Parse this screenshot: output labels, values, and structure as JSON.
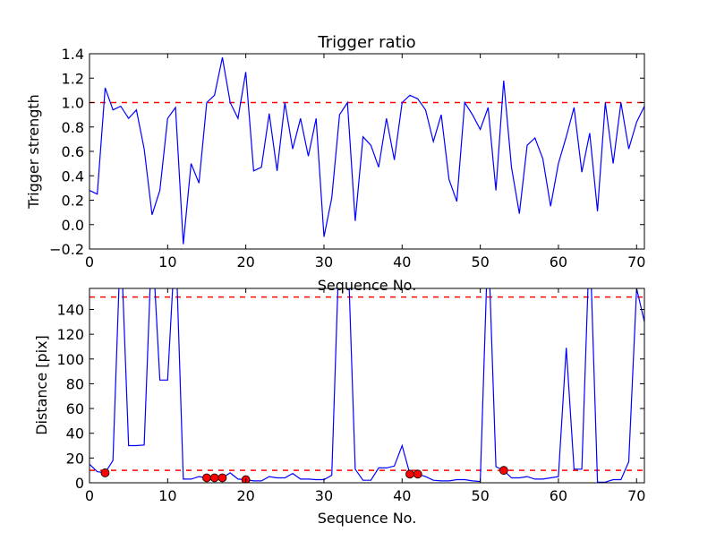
{
  "chart_data": [
    {
      "type": "line",
      "title": "Trigger ratio",
      "xlabel": "Sequence No.",
      "ylabel": "Trigger strength",
      "xlim": [
        0,
        71
      ],
      "ylim": [
        -0.2,
        1.4
      ],
      "xticks": [
        0,
        10,
        20,
        30,
        40,
        50,
        60,
        70
      ],
      "yticks": [
        -0.2,
        0.0,
        0.2,
        0.4,
        0.6,
        0.8,
        1.0,
        1.2,
        1.4
      ],
      "ytick_labels": [
        "−0.2",
        "0.0",
        "0.2",
        "0.4",
        "0.6",
        "0.8",
        "1.0",
        "1.2",
        "1.4"
      ],
      "hlines": [
        {
          "y": 1.0,
          "color": "#ff0000",
          "style": "dashed"
        }
      ],
      "series": [
        {
          "name": "trigger strength",
          "color": "#0000ff",
          "x": [
            0,
            1,
            2,
            3,
            4,
            5,
            6,
            7,
            8,
            9,
            10,
            11,
            12,
            13,
            14,
            15,
            16,
            17,
            18,
            19,
            20,
            21,
            22,
            23,
            24,
            25,
            26,
            27,
            28,
            29,
            30,
            31,
            32,
            33,
            34,
            35,
            36,
            37,
            38,
            39,
            40,
            41,
            42,
            43,
            44,
            45,
            46,
            47,
            48,
            49,
            50,
            51,
            52,
            53,
            54,
            55,
            56,
            57,
            58,
            59,
            60,
            61,
            62,
            63,
            64,
            65,
            66,
            67,
            68,
            69,
            70,
            71
          ],
          "y": [
            0.28,
            0.25,
            1.12,
            0.94,
            0.97,
            0.87,
            0.94,
            0.62,
            0.08,
            0.28,
            0.87,
            0.96,
            -0.16,
            0.5,
            0.34,
            1.0,
            1.06,
            1.37,
            1.0,
            0.87,
            1.25,
            0.44,
            0.47,
            0.91,
            0.44,
            1.0,
            0.62,
            0.87,
            0.56,
            0.87,
            -0.1,
            0.22,
            0.9,
            1.0,
            0.03,
            0.72,
            0.65,
            0.47,
            0.87,
            0.53,
            1.0,
            1.06,
            1.03,
            0.94,
            0.68,
            0.9,
            0.37,
            0.19,
            1.0,
            0.9,
            0.78,
            0.96,
            0.28,
            1.18,
            0.47,
            0.09,
            0.65,
            0.71,
            0.54,
            0.15,
            0.5,
            0.72,
            0.96,
            0.43,
            0.75,
            0.11,
            1.0,
            0.5,
            1.0,
            0.62,
            0.84,
            0.97
          ]
        }
      ]
    },
    {
      "type": "line",
      "title": "",
      "xlabel": "Sequence No.",
      "ylabel": "Distance [pix]",
      "xlim": [
        0,
        71
      ],
      "ylim": [
        0,
        157
      ],
      "xticks": [
        0,
        10,
        20,
        30,
        40,
        50,
        60,
        70
      ],
      "yticks": [
        0,
        20,
        40,
        60,
        80,
        100,
        120,
        140
      ],
      "ytick_labels": [
        "0",
        "20",
        "40",
        "60",
        "80",
        "100",
        "120",
        "140"
      ],
      "hlines": [
        {
          "y": 150,
          "color": "#ff0000",
          "style": "dashed"
        },
        {
          "y": 10,
          "color": "#ff0000",
          "style": "dashed"
        }
      ],
      "series": [
        {
          "name": "distance",
          "color": "#0000ff",
          "x": [
            0,
            1,
            2,
            3,
            4,
            5,
            6,
            7,
            8,
            9,
            10,
            11,
            12,
            13,
            14,
            15,
            16,
            17,
            18,
            19,
            20,
            21,
            22,
            23,
            24,
            25,
            26,
            27,
            28,
            29,
            30,
            31,
            32,
            33,
            34,
            35,
            36,
            37,
            38,
            39,
            40,
            41,
            42,
            43,
            44,
            45,
            46,
            47,
            48,
            49,
            50,
            51,
            52,
            53,
            54,
            55,
            56,
            57,
            58,
            59,
            60,
            61,
            62,
            63,
            64,
            65,
            66,
            67,
            68,
            69,
            70,
            71
          ],
          "y": [
            15,
            9,
            8,
            18,
            200,
            30,
            30,
            30.5,
            200,
            83,
            83,
            200,
            3,
            3,
            5,
            4,
            4,
            4,
            8,
            3,
            2.5,
            1.5,
            1.5,
            5,
            4,
            4,
            7.5,
            3,
            3,
            2.5,
            2.5,
            6,
            200,
            200,
            11,
            2,
            2,
            12,
            12,
            13.5,
            30,
            7,
            7,
            5,
            2,
            1.5,
            1.5,
            2.5,
            2.5,
            1.5,
            1,
            200,
            13,
            10,
            4,
            4,
            5,
            3,
            3,
            4,
            5,
            109,
            11,
            11,
            200,
            0.5,
            0.5,
            2.5,
            2.5,
            17,
            157,
            130
          ]
        },
        {
          "name": "selected points",
          "color": "#ff0000",
          "marker": "circle",
          "x": [
            2,
            15,
            16,
            17,
            20,
            41,
            42,
            53
          ],
          "y": [
            8,
            4,
            4,
            4,
            2.5,
            7,
            7,
            10
          ]
        }
      ]
    }
  ]
}
